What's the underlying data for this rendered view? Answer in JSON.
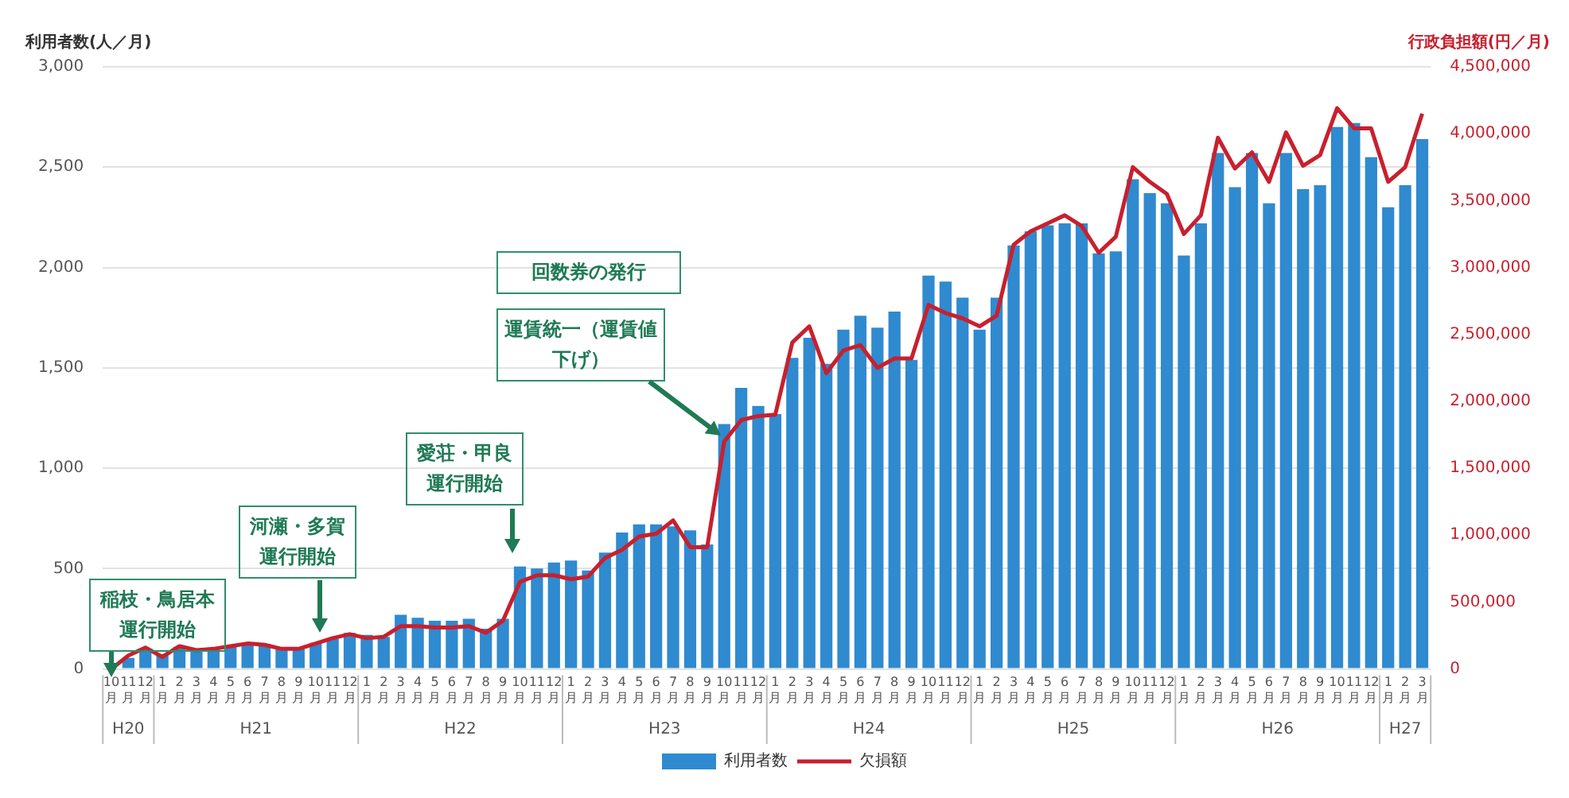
{
  "chart_data": {
    "type": "bar",
    "ylabel": "利用者数(人／月)",
    "y2label": "行政負担額(円／月)",
    "categories": [
      "10月",
      "11月",
      "12月",
      "1月",
      "2月",
      "3月",
      "4月",
      "5月",
      "6月",
      "7月",
      "8月",
      "9月",
      "10月",
      "11月",
      "12月",
      "1月",
      "2月",
      "3月",
      "4月",
      "5月",
      "6月",
      "7月",
      "8月",
      "9月",
      "10月",
      "11月",
      "12月",
      "1月",
      "2月",
      "3月",
      "4月",
      "5月",
      "6月",
      "7月",
      "8月",
      "9月",
      "10月",
      "11月",
      "12月",
      "1月",
      "2月",
      "3月",
      "4月",
      "5月",
      "6月",
      "7月",
      "8月",
      "9月",
      "10月",
      "11月",
      "12月",
      "1月",
      "2月",
      "3月",
      "4月",
      "5月",
      "6月",
      "7月",
      "8月",
      "9月",
      "10月",
      "11月",
      "12月",
      "1月",
      "2月",
      "3月",
      "4月",
      "5月",
      "6月",
      "7月",
      "8月",
      "9月",
      "10月",
      "11月",
      "12月",
      "1月",
      "2月",
      "3月"
    ],
    "series": [
      {
        "name": "利用者数",
        "type": "bar",
        "color": "#2f8ad0",
        "values": [
          null,
          55,
          95,
          70,
          110,
          100,
          100,
          110,
          125,
          125,
          100,
          100,
          130,
          150,
          180,
          170,
          160,
          270,
          255,
          240,
          240,
          250,
          200,
          250,
          510,
          500,
          530,
          540,
          490,
          580,
          680,
          720,
          720,
          710,
          690,
          620,
          1220,
          1400,
          1310,
          1270,
          1550,
          1650,
          1520,
          1690,
          1760,
          1700,
          1780,
          1540,
          1960,
          1930,
          1850,
          1690,
          1850,
          2110,
          2180,
          2210,
          2220,
          2220,
          2070,
          2080,
          2440,
          2370,
          2320,
          2060,
          2220,
          2570,
          2400,
          2570,
          2320,
          2570,
          2390,
          2410,
          2700,
          2720,
          2550,
          2300,
          2410,
          2640
        ]
      },
      {
        "name": "欠損額",
        "type": "line",
        "axis": "y2",
        "color": "#c8202e",
        "values": [
          0,
          100000,
          160000,
          90000,
          170000,
          140000,
          150000,
          170000,
          190000,
          180000,
          150000,
          150000,
          190000,
          230000,
          260000,
          230000,
          240000,
          320000,
          320000,
          310000,
          310000,
          320000,
          270000,
          360000,
          650000,
          700000,
          700000,
          670000,
          690000,
          830000,
          890000,
          990000,
          1010000,
          1110000,
          910000,
          910000,
          1700000,
          1860000,
          1890000,
          1900000,
          2440000,
          2560000,
          2210000,
          2380000,
          2420000,
          2250000,
          2320000,
          2320000,
          2720000,
          2660000,
          2620000,
          2560000,
          2640000,
          3170000,
          3270000,
          3330000,
          3390000,
          3310000,
          3110000,
          3230000,
          3750000,
          3640000,
          3550000,
          3250000,
          3390000,
          3970000,
          3740000,
          3860000,
          3640000,
          4010000,
          3760000,
          3840000,
          4190000,
          4040000,
          4040000,
          3640000,
          3750000,
          4150000
        ]
      }
    ],
    "ylim": [
      0,
      3000
    ],
    "yticks": [
      {
        "value": 0,
        "label": "0"
      },
      {
        "value": 500,
        "label": "500"
      },
      {
        "value": 1000,
        "label": "1,000"
      },
      {
        "value": 1500,
        "label": "1,500"
      },
      {
        "value": 2000,
        "label": "2,000"
      },
      {
        "value": 2500,
        "label": "2,500"
      },
      {
        "value": 3000,
        "label": "3,000"
      }
    ],
    "y2lim": [
      0,
      4500000
    ],
    "y2ticks": [
      {
        "value": 0,
        "label": "0"
      },
      {
        "value": 500000,
        "label": "500,000"
      },
      {
        "value": 1000000,
        "label": "1,000,000"
      },
      {
        "value": 1500000,
        "label": "1,500,000"
      },
      {
        "value": 2000000,
        "label": "2,000,000"
      },
      {
        "value": 2500000,
        "label": "2,500,000"
      },
      {
        "value": 3000000,
        "label": "3,000,000"
      },
      {
        "value": 3500000,
        "label": "3,500,000"
      },
      {
        "value": 4000000,
        "label": "4,000,000"
      },
      {
        "value": 4500000,
        "label": "4,500,000"
      }
    ],
    "grid": "y",
    "legend": "bottom",
    "marker": "none",
    "line_style": "solid",
    "annotations": [
      "稲枝・鳥居本運行開始",
      "河瀬・多賀運行開始",
      "愛荘・甲良運行開始",
      "回数券の発行",
      "運賃統一（運賃値下げ）",
      "H20",
      "H21",
      "H22",
      "H23",
      "H24",
      "H25",
      "H26",
      "H27"
    ]
  }
}
